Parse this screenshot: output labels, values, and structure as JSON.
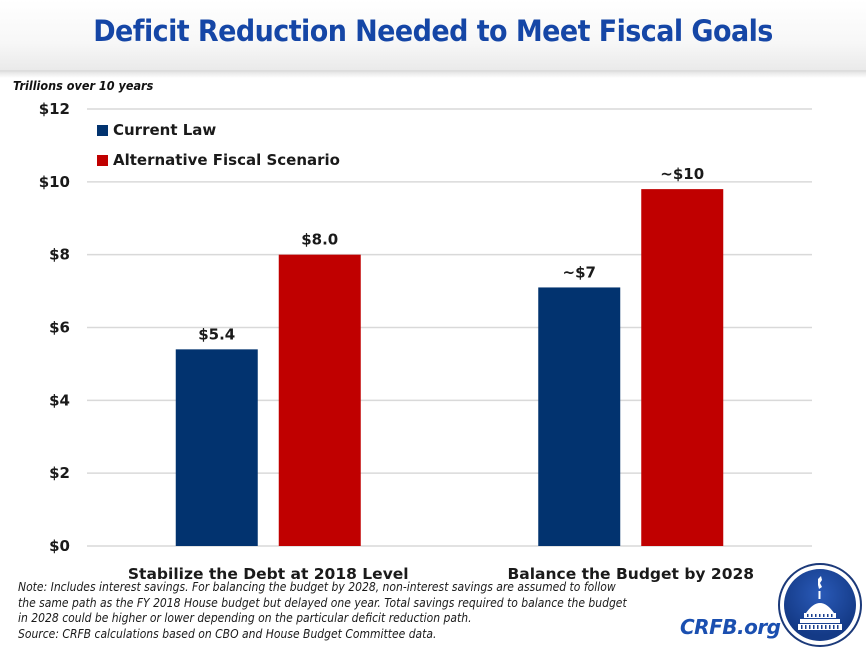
{
  "header": {
    "title": "Deficit Reduction Needed to Meet Fiscal Goals"
  },
  "unit_label": "Trillions over 10 years",
  "chart_data": {
    "type": "bar",
    "title": "Deficit Reduction Needed to Meet Fiscal Goals",
    "ylabel": "Trillions over 10 years",
    "xlabel": "",
    "categories": [
      "Stabilize the Debt at 2018 Level",
      "Balance the Budget by 2028"
    ],
    "series": [
      {
        "name": "Current Law",
        "color": "#02336f",
        "values": [
          5.4,
          7.1
        ],
        "labels": [
          "$5.4",
          "~$7"
        ]
      },
      {
        "name": "Alternative Fiscal Scenario",
        "color": "#c00000",
        "values": [
          8.0,
          9.8
        ],
        "labels": [
          "$8.0",
          "~$10"
        ]
      }
    ],
    "ylim": [
      0,
      12
    ],
    "yticks": [
      0,
      2,
      4,
      6,
      8,
      10,
      12
    ],
    "ytick_labels": [
      "$0",
      "$2",
      "$4",
      "$6",
      "$8",
      "$10",
      "$12"
    ],
    "grid": true,
    "legend_position": "top-left"
  },
  "notes": [
    "Note: Includes interest savings. For balancing the budget by 2028, non-interest savings are assumed to follow",
    "the same path as the FY 2018 House budget but delayed one year. Total savings required to balance the budget",
    "in 2028 could be higher or lower depending on the particular deficit reduction path.",
    "Source: CRFB calculations based on CBO and House Budget Committee data."
  ],
  "brand": {
    "text": "CRFB.org",
    "logo": "capitol-dome-logo"
  }
}
